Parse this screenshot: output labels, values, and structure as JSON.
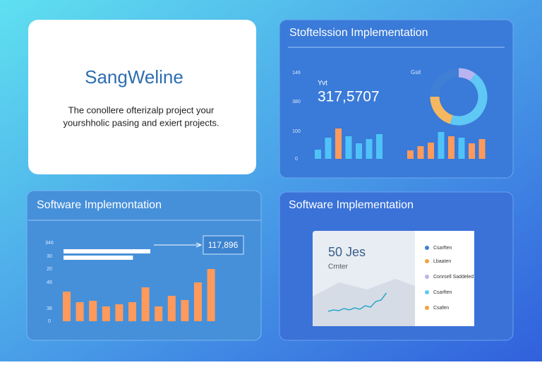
{
  "intro": {
    "title": "SangWeline",
    "lines": [
      "The conollere ofterizalp project your",
      "yourshholic pasing and exiert projects."
    ]
  },
  "overview": {
    "title": "Stoftelssion Implementation",
    "axis_labels": [
      "146",
      "380",
      "100",
      "0"
    ],
    "kpi_label": "Yvt",
    "kpi_value": "317,5707",
    "donut_label": "Gsit",
    "bars_left": {
      "values": [
        13,
        30,
        43,
        32,
        22,
        28,
        35
      ],
      "colors": [
        "#4fc3f7",
        "#4fc3f7",
        "#ff9a5c",
        "#4fc3f7",
        "#4fc3f7",
        "#4fc3f7",
        "#4fc3f7"
      ]
    },
    "bars_right": {
      "values": [
        12,
        18,
        23,
        38,
        32,
        30,
        22,
        28
      ],
      "colors": [
        "#ff9a5c",
        "#ff9a5c",
        "#ff9a5c",
        "#4fc3f7",
        "#ff9a5c",
        "#4fc3f7",
        "#ff9a5c",
        "#ff9a5c"
      ]
    },
    "donut": {
      "values": [
        10,
        45,
        20,
        25
      ],
      "colors": [
        "#b8b4f0",
        "#5fc8f5",
        "#f5b860",
        "#3f7fd6"
      ]
    }
  },
  "trend": {
    "title": "Software Implemontation",
    "axis_labels": [
      "346",
      "30",
      "20",
      "46",
      "36",
      "0"
    ],
    "callout": "117,896",
    "hbars": [
      100,
      80
    ],
    "bars": [
      42,
      27,
      29,
      21,
      24,
      27,
      48,
      21,
      36,
      30,
      55,
      74
    ],
    "bar_color": "#ff9a5c"
  },
  "summary": {
    "title": "Software Implementation",
    "kpi_value": "50 Jes",
    "kpi_label": "Crnter",
    "line": [
      4,
      6,
      5,
      8,
      6,
      9,
      7,
      12,
      10,
      18,
      20,
      30
    ],
    "legend": [
      {
        "label": "Csarften",
        "color": "#3f7fd6"
      },
      {
        "label": "Lbaaten",
        "color": "#f5a040"
      },
      {
        "label": "Conrsell Saddeled",
        "color": "#b8b4f0"
      },
      {
        "label": "Csarften",
        "color": "#5fc8f5"
      },
      {
        "label": "Csafen",
        "color": "#f5a040"
      }
    ]
  }
}
